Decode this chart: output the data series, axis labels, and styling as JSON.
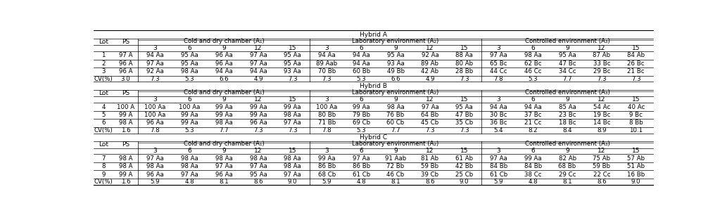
{
  "env_labels": [
    "Cold and dry chamber (A₁)",
    "Laboratory environment (A₂)",
    "Controlled environment (A₃)"
  ],
  "month_labels": [
    "3",
    "6",
    "9",
    "12",
    "15"
  ],
  "hybrids": [
    {
      "name": "Hybrid A",
      "lots": [
        {
          "lot": "1",
          "ps": "97 A",
          "A1": [
            "94 Aa",
            "95 Aa",
            "96 Aa",
            "97 Aa",
            "95 Aa"
          ],
          "A2": [
            "94 Aa",
            "94 Aa",
            "95 Aa",
            "92 Aa",
            "88 Aa"
          ],
          "A3": [
            "97 Aa",
            "98 Aa",
            "95 Aa",
            "87 Ab",
            "84 Ab"
          ]
        },
        {
          "lot": "2",
          "ps": "96 A",
          "A1": [
            "97 Aa",
            "95 Aa",
            "96 Aa",
            "97 Aa",
            "95 Aa"
          ],
          "A2": [
            "89 Aab",
            "94 Aa",
            "93 Aa",
            "89 Ab",
            "80 Ab"
          ],
          "A3": [
            "65 Bc",
            "62 Bc",
            "47 Bc",
            "33 Bc",
            "26 Bc"
          ]
        },
        {
          "lot": "3",
          "ps": "96 A",
          "A1": [
            "92 Aa",
            "98 Aa",
            "94 Aa",
            "94 Aa",
            "93 Aa"
          ],
          "A2": [
            "70 Bb",
            "60 Bb",
            "49 Bb",
            "42 Ab",
            "28 Bb"
          ],
          "A3": [
            "44 Cc",
            "46 Cc",
            "34 Cc",
            "29 Bc",
            "21 Bc"
          ]
        }
      ],
      "cv": [
        "CV(%)",
        "3.0",
        "7.3",
        "5.3",
        "6.6",
        "4.9",
        "7.3",
        "7.3",
        "5.3",
        "6.6",
        "4.9",
        "7.3",
        "7.8",
        "5.3",
        "7.7",
        "7.3",
        "7.3"
      ]
    },
    {
      "name": "Hybrid B",
      "lots": [
        {
          "lot": "4",
          "ps": "100 A",
          "A1": [
            "100 Aa",
            "100 Aa",
            "99 Aa",
            "99 Aa",
            "99 Aa"
          ],
          "A2": [
            "100 Aa",
            "99 Aa",
            "98 Aa",
            "97 Aa",
            "95 Aa"
          ],
          "A3": [
            "94 Aa",
            "94 Aa",
            "85 Aa",
            "54 Ac",
            "40 Ac"
          ]
        },
        {
          "lot": "5",
          "ps": "99 A",
          "A1": [
            "100 Aa",
            "99 Aa",
            "99 Aa",
            "99 Aa",
            "98 Aa"
          ],
          "A2": [
            "80 Bb",
            "79 Bb",
            "76 Bb",
            "64 Bb",
            "47 Bb"
          ],
          "A3": [
            "30 Bc",
            "37 Bc",
            "23 Bc",
            "19 Bc",
            "9 Bc"
          ]
        },
        {
          "lot": "6",
          "ps": "98 A",
          "A1": [
            "96 Aa",
            "99 Aa",
            "98 Aa",
            "96 Aa",
            "97 Aa"
          ],
          "A2": [
            "71 Bb",
            "69 Cb",
            "60 Cb",
            "45 Cb",
            "35 Cb"
          ],
          "A3": [
            "36 Bc",
            "21 Cc",
            "18 Bc",
            "14 Bc",
            "8 Bb"
          ]
        }
      ],
      "cv": [
        "CV(%)",
        "1.6",
        "7.8",
        "5.3",
        "7.7",
        "7.3",
        "7.3",
        "7.8",
        "5.3",
        "7.7",
        "7.3",
        "7.3",
        "5.4",
        "8.2",
        "8.4",
        "8.9",
        "10.1"
      ]
    },
    {
      "name": "Hybrid C",
      "lots": [
        {
          "lot": "7",
          "ps": "98 A",
          "A1": [
            "97 Aa",
            "98 Aa",
            "98 Aa",
            "98 Aa",
            "98 Aa"
          ],
          "A2": [
            "99 Aa",
            "97 Aa",
            "91 Aab",
            "81 Ab",
            "61 Ab"
          ],
          "A3": [
            "97 Aa",
            "99 Aa",
            "82 Ab",
            "75 Ab",
            "57 Ab"
          ]
        },
        {
          "lot": "8",
          "ps": "98 A",
          "A1": [
            "98 Aa",
            "98 Aa",
            "97 Aa",
            "97 Aa",
            "98 Aa"
          ],
          "A2": [
            "86 Bb",
            "86 Bb",
            "72 Bb",
            "59 Bb",
            "42 Bb"
          ],
          "A3": [
            "84 Bb",
            "84 Bb",
            "68 Bb",
            "59 Bb",
            "51 Ab"
          ]
        },
        {
          "lot": "9",
          "ps": "99 A",
          "A1": [
            "96 Aa",
            "97 Aa",
            "96 Aa",
            "95 Aa",
            "97 Aa"
          ],
          "A2": [
            "68 Cb",
            "61 Cb",
            "46 Cb",
            "39 Cb",
            "25 Cb"
          ],
          "A3": [
            "61 Cb",
            "38 Cc",
            "29 Cc",
            "22 Cc",
            "16 Bb"
          ]
        }
      ],
      "cv": [
        "CV(%)",
        "1.6",
        "5.9",
        "4.8",
        "8.1",
        "8.6",
        "9.0",
        "5.9",
        "4.8",
        "8.1",
        "8.6",
        "9.0",
        "5.9",
        "4.8",
        "8.1",
        "8.6",
        "9.0"
      ]
    }
  ],
  "bg_color": "#ffffff",
  "text_color": "#000000",
  "font_size": 6.2,
  "header_font_size": 6.5
}
